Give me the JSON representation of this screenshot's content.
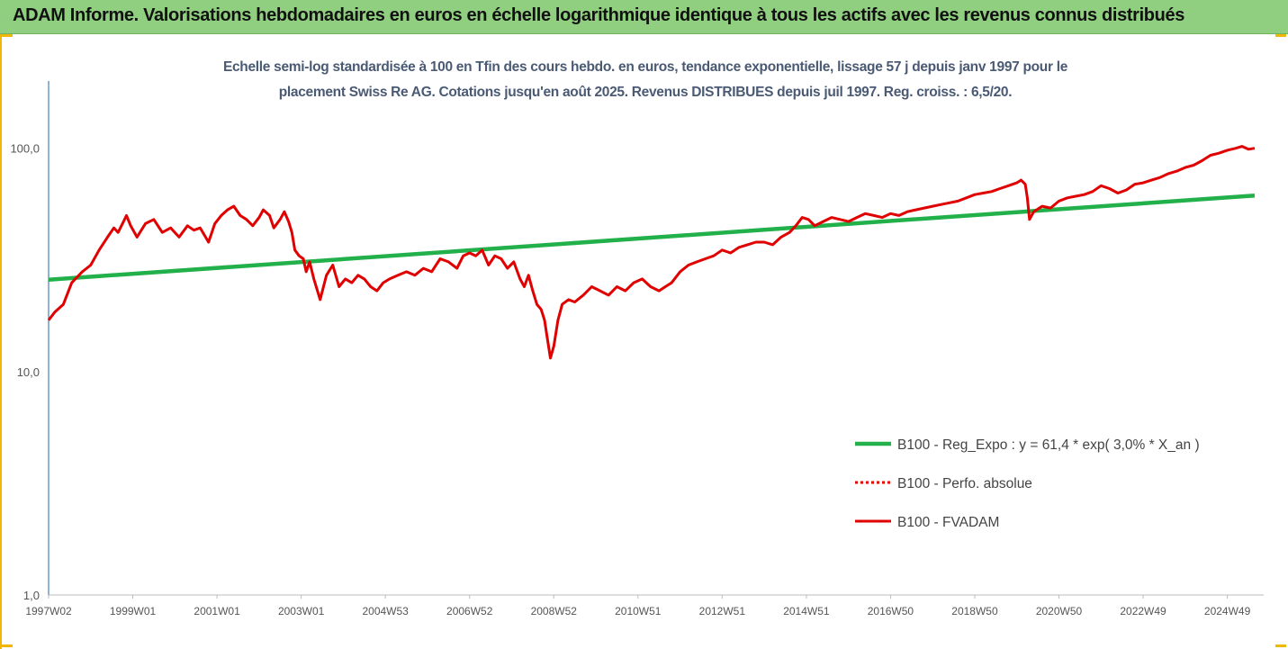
{
  "header": {
    "title": "ADAM Informe. Valorisations hebdomadaires en euros en échelle logarithmique identique à tous les actifs avec les revenus connus distribués"
  },
  "colors": {
    "banner": "#8fcf7f",
    "accent": "#f2b705",
    "regression": "#22b04b",
    "fvadam": "#e00000",
    "perfo": "#e00000",
    "axis": "#4a7fb5",
    "subtitle": "#4a5a74"
  },
  "chart_data": {
    "type": "line",
    "subtitle_line1": "Echelle semi-log standardisée à 100 en Tfin des cours hebdo. en euros, tendance exponentielle, lissage 57 j depuis janv 1997 pour le",
    "subtitle_line2": "placement Swiss Re AG. Cotations jusqu'en août 2025. Revenus DISTRIBUES depuis juil 1997. Reg. croiss. : 6,5/20.",
    "y_scale": "log",
    "ylim": [
      1,
      200
    ],
    "xlim": [
      1997.0,
      2025.65
    ],
    "y_ticks": [
      {
        "value": 1,
        "label": "1,0"
      },
      {
        "value": 10,
        "label": "10,0"
      },
      {
        "value": 100,
        "label": "100,0"
      }
    ],
    "x_ticks": [
      {
        "year": 1997.0,
        "label": "1997W02"
      },
      {
        "year": 1999.0,
        "label": "1999W01"
      },
      {
        "year": 2001.0,
        "label": "2001W01"
      },
      {
        "year": 2003.0,
        "label": "2003W01"
      },
      {
        "year": 2005.0,
        "label": "2004W53"
      },
      {
        "year": 2007.0,
        "label": "2006W52"
      },
      {
        "year": 2009.0,
        "label": "2008W52"
      },
      {
        "year": 2011.0,
        "label": "2010W51"
      },
      {
        "year": 2013.0,
        "label": "2012W51"
      },
      {
        "year": 2015.0,
        "label": "2014W51"
      },
      {
        "year": 2017.0,
        "label": "2016W50"
      },
      {
        "year": 2019.0,
        "label": "2018W50"
      },
      {
        "year": 2021.0,
        "label": "2020W50"
      },
      {
        "year": 2023.0,
        "label": "2022W49"
      },
      {
        "year": 2025.0,
        "label": "2024W49"
      }
    ],
    "grid": false,
    "legend_position": "bottom-right",
    "series": [
      {
        "name": "B100 - Reg_Expo : y = 61,4 * exp( 3,0% *  X_an )",
        "style": "solid-thick",
        "x": [
          1997.0,
          2025.65
        ],
        "y": [
          25.8,
          61.4
        ]
      },
      {
        "name": "B100 - Perfo. absolue",
        "style": "dotted",
        "x": [],
        "y": []
      },
      {
        "name": "B100 - FVADAM",
        "style": "solid",
        "x": [
          1997.0,
          1997.15,
          1997.35,
          1997.55,
          1997.8,
          1998.0,
          1998.2,
          1998.4,
          1998.55,
          1998.65,
          1998.78,
          1998.85,
          1998.95,
          1999.1,
          1999.3,
          1999.5,
          1999.7,
          1999.9,
          2000.1,
          2000.3,
          2000.45,
          2000.6,
          2000.8,
          2000.95,
          2001.1,
          2001.25,
          2001.4,
          2001.55,
          2001.7,
          2001.85,
          2002.0,
          2002.1,
          2002.25,
          2002.35,
          2002.5,
          2002.6,
          2002.7,
          2002.78,
          2002.85,
          2002.95,
          2003.05,
          2003.12,
          2003.2,
          2003.3,
          2003.45,
          2003.6,
          2003.75,
          2003.9,
          2004.05,
          2004.2,
          2004.35,
          2004.5,
          2004.65,
          2004.8,
          2004.95,
          2005.1,
          2005.3,
          2005.5,
          2005.7,
          2005.9,
          2006.1,
          2006.3,
          2006.5,
          2006.7,
          2006.85,
          2007.0,
          2007.15,
          2007.3,
          2007.45,
          2007.6,
          2007.75,
          2007.9,
          2008.05,
          2008.2,
          2008.3,
          2008.4,
          2008.5,
          2008.6,
          2008.7,
          2008.78,
          2008.85,
          2008.92,
          2009.0,
          2009.1,
          2009.2,
          2009.35,
          2009.5,
          2009.7,
          2009.9,
          2010.1,
          2010.3,
          2010.5,
          2010.7,
          2010.9,
          2011.1,
          2011.3,
          2011.5,
          2011.65,
          2011.8,
          2012.0,
          2012.2,
          2012.4,
          2012.6,
          2012.8,
          2013.0,
          2013.2,
          2013.4,
          2013.6,
          2013.8,
          2014.0,
          2014.2,
          2014.4,
          2014.6,
          2014.75,
          2014.9,
          2015.05,
          2015.2,
          2015.4,
          2015.6,
          2015.8,
          2016.0,
          2016.2,
          2016.4,
          2016.6,
          2016.8,
          2017.0,
          2017.2,
          2017.4,
          2017.6,
          2017.8,
          2018.0,
          2018.2,
          2018.4,
          2018.6,
          2018.8,
          2019.0,
          2019.2,
          2019.4,
          2019.6,
          2019.8,
          2020.0,
          2020.1,
          2020.2,
          2020.25,
          2020.3,
          2020.4,
          2020.6,
          2020.8,
          2021.0,
          2021.2,
          2021.4,
          2021.6,
          2021.8,
          2022.0,
          2022.2,
          2022.4,
          2022.6,
          2022.8,
          2023.0,
          2023.2,
          2023.4,
          2023.6,
          2023.8,
          2024.0,
          2024.2,
          2024.4,
          2024.6,
          2024.8,
          2025.0,
          2025.2,
          2025.35,
          2025.5,
          2025.65
        ],
        "y": [
          17,
          18.5,
          20,
          25,
          28,
          30,
          35,
          40,
          44,
          42,
          47,
          50,
          45,
          40,
          46,
          48,
          42,
          44,
          40,
          45,
          43,
          44,
          38,
          46,
          50,
          53,
          55,
          50,
          48,
          45,
          49,
          53,
          50,
          44,
          48,
          52,
          47,
          42,
          35,
          33,
          32,
          28,
          31,
          26,
          21,
          27,
          30,
          24,
          26,
          25,
          27,
          26,
          24,
          23,
          25,
          26,
          27,
          28,
          27,
          29,
          28,
          32,
          31,
          29,
          33,
          34,
          33,
          35,
          30,
          33,
          32,
          29,
          31,
          26,
          24,
          27,
          23,
          20,
          19,
          17,
          14,
          11.5,
          13,
          17,
          20,
          21,
          20.5,
          22,
          24,
          23,
          22,
          24,
          23,
          25,
          26,
          24,
          23,
          24,
          25,
          28,
          30,
          31,
          32,
          33,
          35,
          34,
          36,
          37,
          38,
          38,
          37,
          40,
          42,
          45,
          49,
          48,
          45,
          47,
          49,
          48,
          47,
          49,
          51,
          50,
          49,
          51,
          50,
          52,
          53,
          54,
          55,
          56,
          57,
          58,
          60,
          62,
          63,
          64,
          66,
          68,
          70,
          72,
          69,
          60,
          48,
          52,
          55,
          54,
          58,
          60,
          61,
          62,
          64,
          68,
          66,
          63,
          65,
          69,
          70,
          72,
          74,
          77,
          79,
          82,
          84,
          88,
          93,
          95,
          98,
          100,
          102,
          99,
          100
        ]
      }
    ]
  }
}
